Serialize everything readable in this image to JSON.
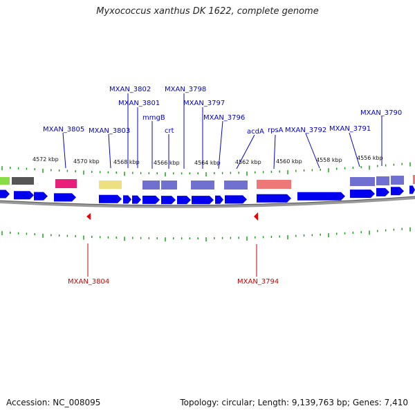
{
  "title": "Myxococcus xanthus DK 1622, complete genome",
  "footer": {
    "accession": "Accession: NC_008095",
    "stats": "Topology: circular; Length: 9,139,763 bp; Genes: 7,410"
  },
  "colors": {
    "forward_gene": "#0000ee",
    "reverse_marker": "#ee0000",
    "tick": "#119911",
    "backbone": "#888888",
    "top_label": "#0000cc",
    "bottom_label": "#cc0000"
  },
  "scale_labels": [
    "4572 kbp",
    "4570 kbp",
    "4568 kbp",
    "4566 kbp",
    "4564 kbp",
    "4562 kbp",
    "4560 kbp",
    "4558 kbp",
    "4556 kbp"
  ],
  "top_labels": [
    "MXAN_3802",
    "MXAN_3798",
    "MXAN_3801",
    "MXAN_3797",
    "mmgB",
    "MXAN_3796",
    "MXAN_3790",
    "MXAN_3805",
    "MXAN_3803",
    "crt",
    "acdA",
    "rpsA",
    "MXAN_3792",
    "MXAN_3791"
  ],
  "bottom_labels": [
    "MXAN_3804",
    "MXAN_3794"
  ]
}
